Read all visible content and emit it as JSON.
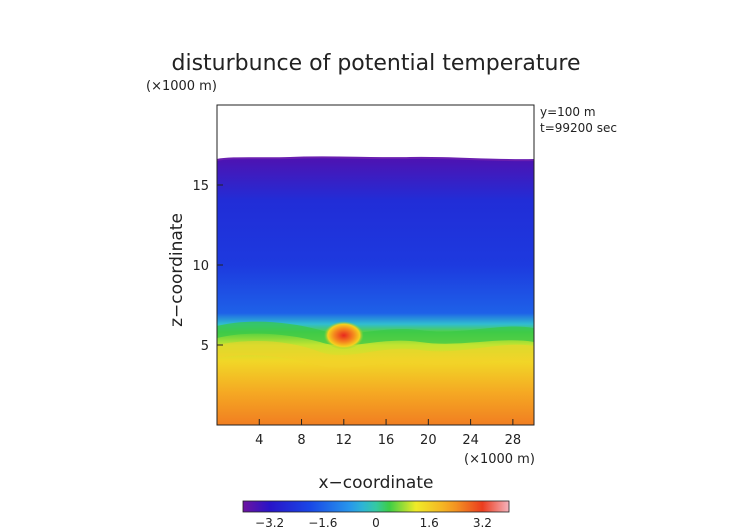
{
  "chart_data": {
    "type": "heatmap",
    "title": "disturbunce of potential temperature",
    "xlabel": "x−coordinate",
    "ylabel": "z−coordinate",
    "x_unit": "(×1000 m)",
    "y_unit": "(×1000 m)",
    "annotations": [
      "y=100 m",
      "t=99200 sec"
    ],
    "xlim": [
      0,
      30
    ],
    "ylim": [
      0,
      20
    ],
    "xticks": [
      4,
      8,
      12,
      16,
      20,
      24,
      28
    ],
    "yticks": [
      5,
      10,
      15
    ],
    "colorbar": {
      "range": [
        -4,
        4
      ],
      "ticks": [
        -3.2,
        -1.6,
        0,
        1.6,
        3.2
      ],
      "tick_labels": [
        "−3.2",
        "−1.6",
        "0",
        "1.6",
        "3.2"
      ]
    },
    "field_profile_z": [
      {
        "z": 0,
        "value": 2.6
      },
      {
        "z": 2,
        "value": 2.2
      },
      {
        "z": 4,
        "value": 1.5
      },
      {
        "z": 5,
        "value": 1.0
      },
      {
        "z": 5.8,
        "value": 0.5
      },
      {
        "z": 6.3,
        "value": -0.3
      },
      {
        "z": 7,
        "value": -1.6
      },
      {
        "z": 10,
        "value": -2.3
      },
      {
        "z": 14,
        "value": -2.6
      },
      {
        "z": 16.5,
        "value": -3.6
      }
    ],
    "warm_anomaly": {
      "x": 12,
      "z": 5.6,
      "value": 3.2
    },
    "blank_above_z": 16.6
  }
}
